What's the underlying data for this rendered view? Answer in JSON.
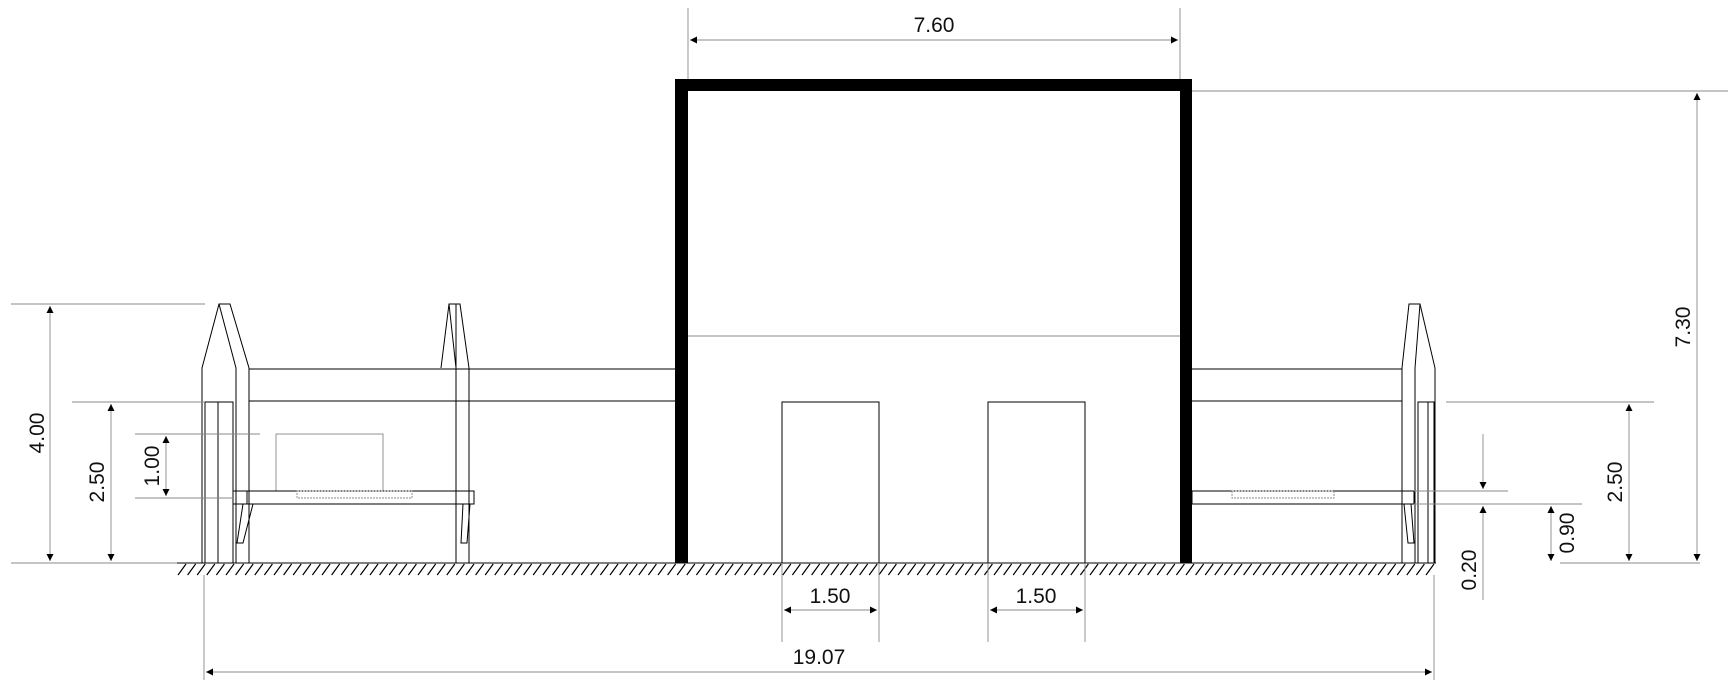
{
  "dimensions": {
    "building_width": "7.60",
    "building_height": "7.30",
    "total_width": "19.07",
    "door_left_width": "1.50",
    "door_right_width": "1.50",
    "left_pavilion_height": "4.00",
    "left_wall_height": "2.50",
    "left_box_height": "1.00",
    "right_wall_height": "2.50",
    "right_bench_height": "0.90",
    "right_bench_thickness": "0.20"
  }
}
